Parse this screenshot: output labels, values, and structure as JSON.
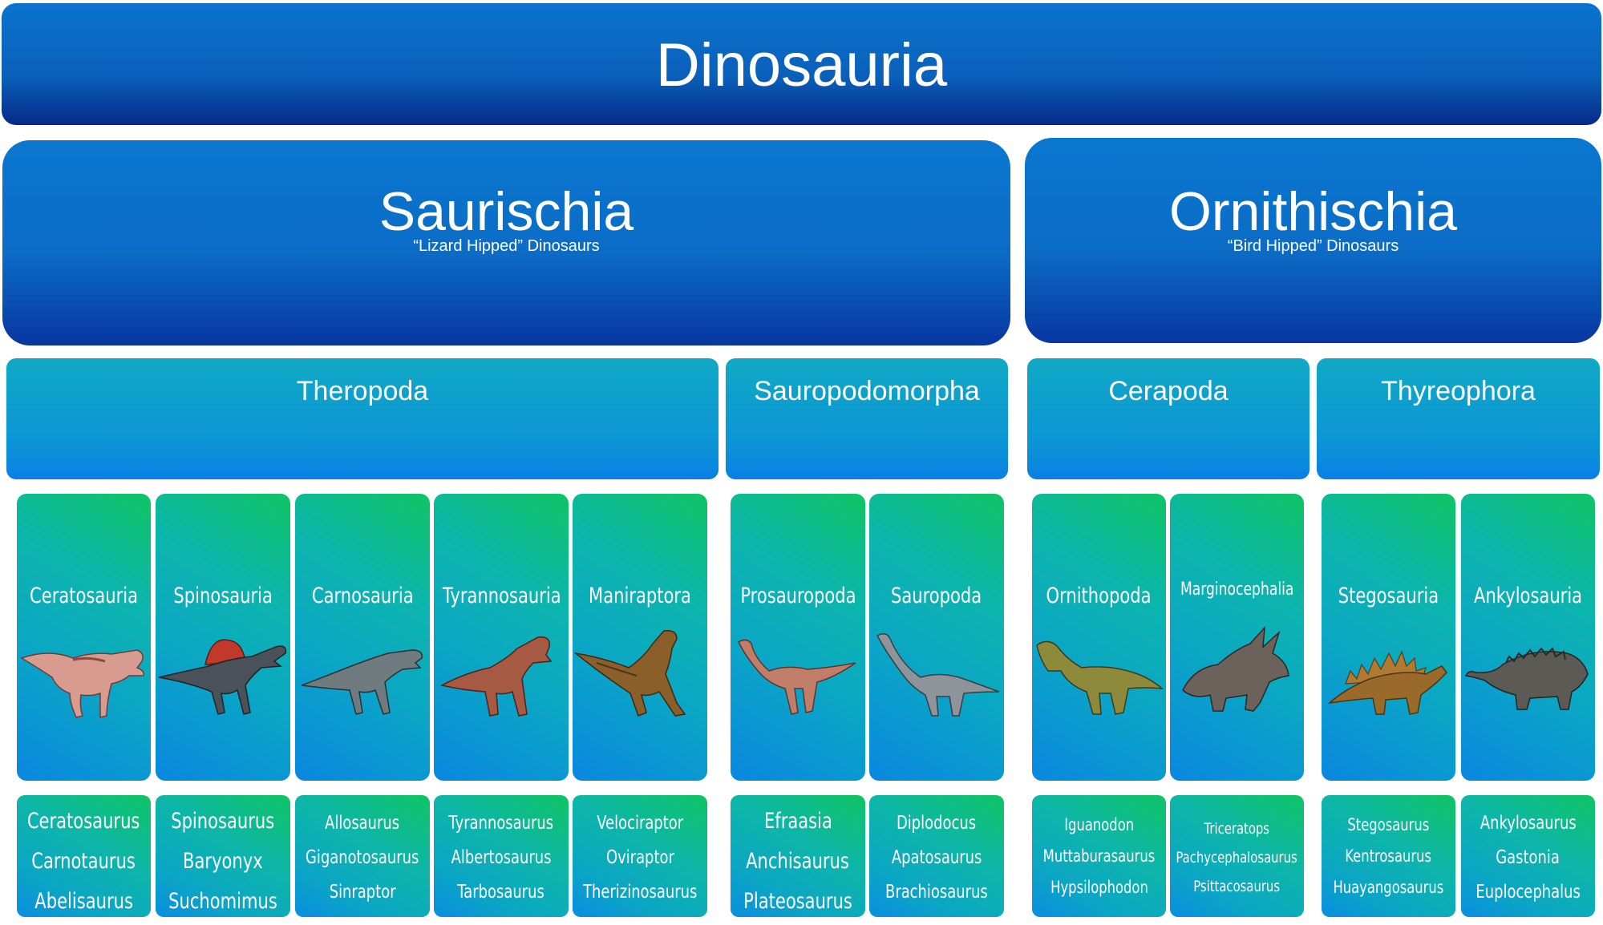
{
  "root": {
    "title": "Dinosauria"
  },
  "orders": [
    {
      "name": "Saurischia",
      "subtitle": "“Lizard Hipped” Dinosaurs"
    },
    {
      "name": "Ornithischia",
      "subtitle": "“Bird Hipped” Dinosaurs"
    }
  ],
  "groups": [
    "Theropoda",
    "Sauropodomorpha",
    "Cerapoda",
    "Thyreophora"
  ],
  "clades": [
    {
      "name": "Ceratosauria",
      "examples": [
        "Ceratosaurus",
        "Carnotaurus",
        "Abelisaurus"
      ],
      "icon": "ceratosaurus-icon"
    },
    {
      "name": "Spinosauria",
      "examples": [
        "Spinosaurus",
        "Baryonyx",
        "Suchomimus"
      ],
      "icon": "spinosaurus-icon"
    },
    {
      "name": "Carnosauria",
      "examples": [
        "Allosaurus",
        "Giganotosaurus",
        "Sinraptor"
      ],
      "icon": "allosaurus-icon"
    },
    {
      "name": "Tyrannosauria",
      "examples": [
        "Tyrannosaurus",
        "Albertosaurus",
        "Tarbosaurus"
      ],
      "icon": "tyrannosaurus-icon"
    },
    {
      "name": "Maniraptora",
      "examples": [
        "Velociraptor",
        "Oviraptor",
        "Therizinosaurus"
      ],
      "icon": "velociraptor-icon"
    },
    {
      "name": "Prosauropoda",
      "examples": [
        "Efraasia",
        "Anchisaurus",
        "Plateosaurus"
      ],
      "icon": "prosauropod-icon"
    },
    {
      "name": "Sauropoda",
      "examples": [
        "Diplodocus",
        "Apatosaurus",
        "Brachiosaurus"
      ],
      "icon": "sauropod-icon"
    },
    {
      "name": "Ornithopoda",
      "examples": [
        "Iguanodon",
        "Muttaburasaurus",
        "Hypsilophodon"
      ],
      "icon": "iguanodon-icon"
    },
    {
      "name": "Marginocephalia",
      "examples": [
        "Triceratops",
        "Pachycephalosaurus",
        "Psittacosaurus"
      ],
      "icon": "triceratops-icon"
    },
    {
      "name": "Stegosauria",
      "examples": [
        "Stegosaurus",
        "Kentrosaurus",
        "Huayangosaurus"
      ],
      "icon": "stegosaurus-icon"
    },
    {
      "name": "Ankylosauria",
      "examples": [
        "Ankylosaurus",
        "Gastonia",
        "Euplocephalus"
      ],
      "icon": "ankylosaurus-icon"
    }
  ],
  "colors": {
    "top": "#0a66c2",
    "group": "#0ca0cc",
    "tile_green": "#0ec463",
    "tile_blue": "#0a87e0"
  }
}
